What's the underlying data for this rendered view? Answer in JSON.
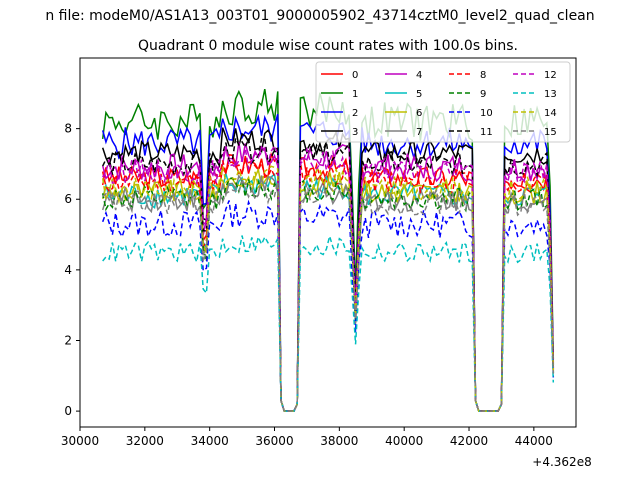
{
  "suptitle": "n file: modeM0/AS1A13_003T01_9000005902_43714cztM0_level2_quad_clean",
  "chart_data": {
    "type": "line",
    "title": "Quadrant 0 module wise count rates with 100.0s bins.",
    "xlabel": "",
    "ylabel": "",
    "x_offset_label": "+4.362e8",
    "xlim": [
      30000,
      45300
    ],
    "ylim": [
      -0.45,
      10.0
    ],
    "xticks": [
      30000,
      32000,
      34000,
      36000,
      38000,
      40000,
      42000,
      44000
    ],
    "xtick_labels": [
      "30000",
      "32000",
      "34000",
      "36000",
      "38000",
      "40000",
      "42000",
      "44000"
    ],
    "yticks": [
      0,
      2,
      4,
      6,
      8
    ],
    "ytick_labels": [
      "0",
      "2",
      "4",
      "6",
      "8"
    ],
    "bin_seconds": 100,
    "x_start": 30700,
    "x_end": 44600,
    "grid": false,
    "legend": {
      "placement": "top-right",
      "columns": 4
    },
    "gaps": [
      {
        "start": 33850,
        "end": 33900,
        "type": "dip"
      },
      {
        "start": 36300,
        "end": 36600,
        "type": "zero"
      },
      {
        "start": 38500,
        "end": 38600,
        "type": "dip"
      },
      {
        "start": 42300,
        "end": 42900,
        "type": "zero"
      },
      {
        "start": 44600,
        "end": 44600,
        "type": "dip"
      }
    ],
    "series": [
      {
        "name": "0",
        "color": "#ff0000",
        "dash": "solid",
        "level": 6.6,
        "amp": 0.35
      },
      {
        "name": "1",
        "color": "#008000",
        "dash": "solid",
        "level": 8.2,
        "amp": 0.55
      },
      {
        "name": "2",
        "color": "#0000ff",
        "dash": "solid",
        "level": 7.6,
        "amp": 0.45
      },
      {
        "name": "3",
        "color": "#000000",
        "dash": "solid",
        "level": 7.3,
        "amp": 0.35
      },
      {
        "name": "4",
        "color": "#bf00bf",
        "dash": "solid",
        "level": 6.9,
        "amp": 0.4
      },
      {
        "name": "5",
        "color": "#00bfbf",
        "dash": "solid",
        "level": 6.1,
        "amp": 0.35
      },
      {
        "name": "6",
        "color": "#bfbf00",
        "dash": "solid",
        "level": 6.2,
        "amp": 0.35
      },
      {
        "name": "7",
        "color": "#808080",
        "dash": "solid",
        "level": 6.0,
        "amp": 0.35
      },
      {
        "name": "8",
        "color": "#ff0000",
        "dash": "dashed",
        "level": 6.5,
        "amp": 0.35
      },
      {
        "name": "9",
        "color": "#008000",
        "dash": "dashed",
        "level": 6.0,
        "amp": 0.35
      },
      {
        "name": "10",
        "color": "#0000ff",
        "dash": "dashed",
        "level": 5.3,
        "amp": 0.4
      },
      {
        "name": "11",
        "color": "#000000",
        "dash": "dashed",
        "level": 7.0,
        "amp": 0.35
      },
      {
        "name": "12",
        "color": "#bf00bf",
        "dash": "dashed",
        "level": 6.8,
        "amp": 0.35
      },
      {
        "name": "13",
        "color": "#00bfbf",
        "dash": "dashed",
        "level": 4.5,
        "amp": 0.3
      },
      {
        "name": "14",
        "color": "#bfbf00",
        "dash": "dashed",
        "level": 6.3,
        "amp": 0.35
      },
      {
        "name": "15",
        "color": "#808080",
        "dash": "dashed",
        "level": 5.9,
        "amp": 0.35
      }
    ]
  }
}
